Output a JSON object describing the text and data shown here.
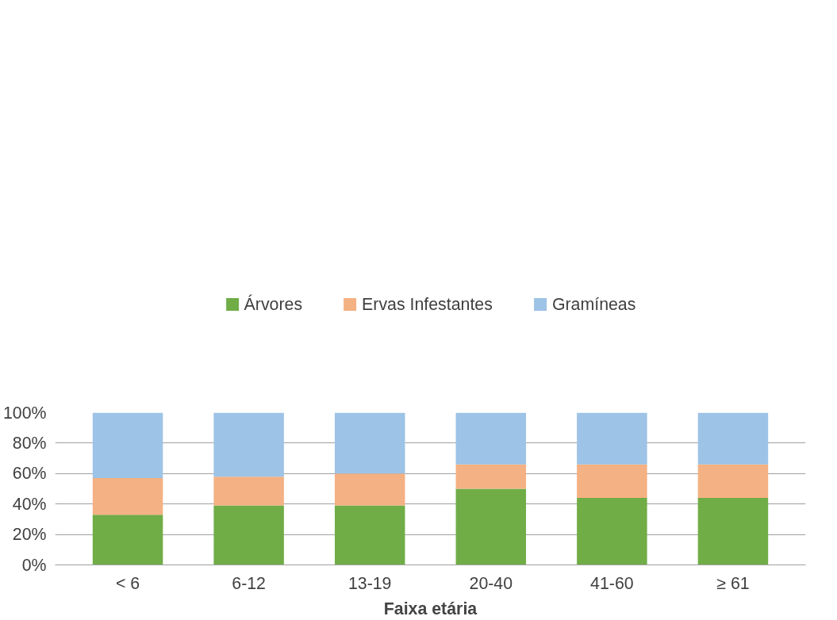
{
  "chart_data": {
    "type": "bar",
    "stacked": true,
    "xlabel": "Faixa etária",
    "categories": [
      "< 6",
      "6-12",
      "13-19",
      "20-40",
      "41-60",
      "≥ 61"
    ],
    "series": [
      {
        "name": "Árvores",
        "color": "#70ad47",
        "values": [
          33,
          39,
          39,
          50,
          44,
          44
        ]
      },
      {
        "name": "Ervas Infestantes",
        "color": "#f4b183",
        "values": [
          24,
          19,
          21,
          16,
          22,
          22
        ]
      },
      {
        "name": "Gramíneas",
        "color": "#9dc3e6",
        "values": [
          43,
          42,
          40,
          34,
          34,
          34
        ]
      }
    ],
    "ylim": [
      0,
      100
    ],
    "yticks": [
      {
        "value": 0,
        "label": "0%"
      },
      {
        "value": 20,
        "label": "20%"
      },
      {
        "value": 40,
        "label": "40%"
      },
      {
        "value": 60,
        "label": "60%"
      },
      {
        "value": 80,
        "label": "80%"
      },
      {
        "value": 100,
        "label": "100%"
      }
    ],
    "grid": "y",
    "legend": "top"
  }
}
